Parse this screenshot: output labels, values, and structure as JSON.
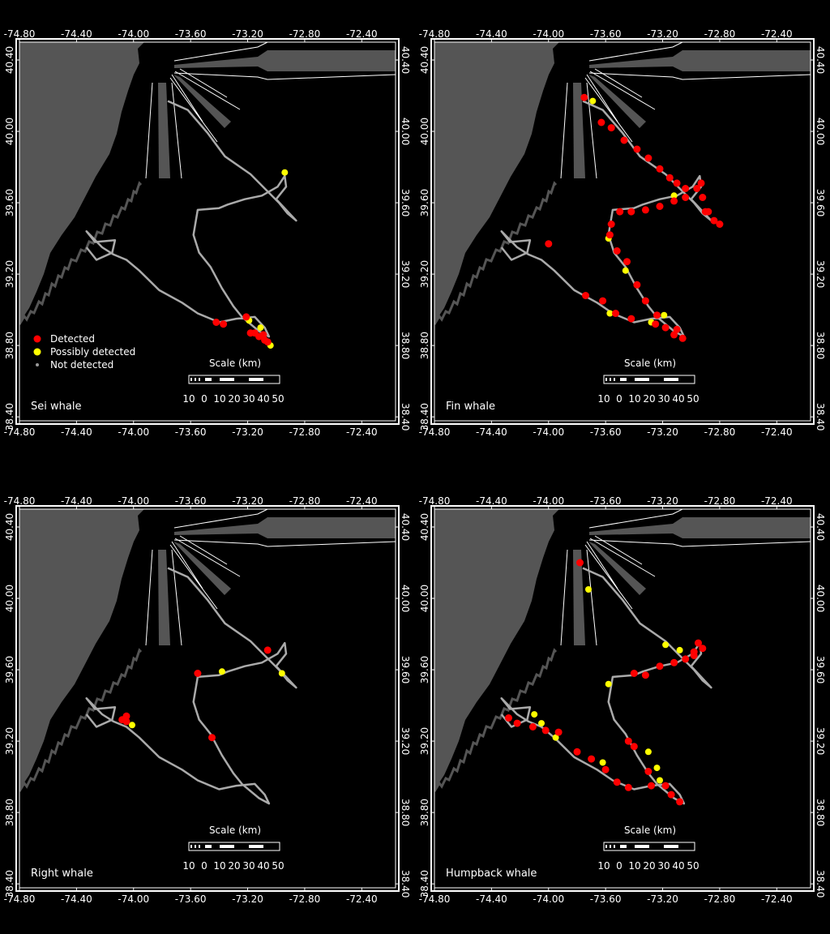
{
  "lon_ticks": [
    "-74.80",
    "-74.40",
    "-74.00",
    "-73.60",
    "-73.20",
    "-72.80",
    "-72.40"
  ],
  "lat_ticks": [
    "40.40",
    "40.00",
    "39.60",
    "39.20",
    "38.80",
    "38.40"
  ],
  "legend": [
    {
      "label": "Detected",
      "color": "#ff0000"
    },
    {
      "label": "Possibly detected",
      "color": "#ffff00"
    },
    {
      "label": "Not detected",
      "color": "#999999"
    }
  ],
  "scale": {
    "title": "Scale (km)",
    "labels": [
      "10",
      "0",
      "10",
      "20",
      "30",
      "40",
      "50"
    ]
  },
  "colors": {
    "land": "#555555",
    "track": "#aaaaaa",
    "detected": "#ff0000",
    "possible": "#ffff00",
    "frame": "#ffffff",
    "lanes": "#555555"
  },
  "track": [
    [
      -73.76,
      40.17
    ],
    [
      -73.62,
      40.12
    ],
    [
      -73.48,
      39.99
    ],
    [
      -73.36,
      39.86
    ],
    [
      -73.18,
      39.76
    ],
    [
      -73.08,
      39.68
    ],
    [
      -72.98,
      39.6
    ],
    [
      -72.92,
      39.54
    ],
    [
      -72.86,
      39.5
    ],
    [
      -73.0,
      39.62
    ],
    [
      -72.93,
      39.69
    ],
    [
      -72.94,
      39.75
    ],
    [
      -72.99,
      39.69
    ],
    [
      -73.1,
      39.64
    ],
    [
      -73.22,
      39.62
    ],
    [
      -73.34,
      39.59
    ],
    [
      -73.4,
      39.57
    ],
    [
      -73.55,
      39.56
    ],
    [
      -73.58,
      39.42
    ],
    [
      -73.54,
      39.32
    ],
    [
      -73.46,
      39.24
    ],
    [
      -73.38,
      39.12
    ],
    [
      -73.3,
      39.02
    ],
    [
      -73.24,
      38.96
    ],
    [
      -73.12,
      38.88
    ],
    [
      -73.05,
      38.85
    ],
    [
      -73.08,
      38.9
    ],
    [
      -73.15,
      38.96
    ],
    [
      -73.28,
      38.95
    ],
    [
      -73.4,
      38.93
    ],
    [
      -73.55,
      38.98
    ],
    [
      -73.66,
      39.04
    ],
    [
      -73.82,
      39.11
    ],
    [
      -73.96,
      39.22
    ],
    [
      -74.05,
      39.28
    ],
    [
      -74.14,
      39.31
    ],
    [
      -74.22,
      39.35
    ],
    [
      -74.33,
      39.44
    ],
    [
      -74.27,
      39.38
    ],
    [
      -74.13,
      39.39
    ],
    [
      -74.15,
      39.32
    ],
    [
      -74.26,
      39.28
    ],
    [
      -74.33,
      39.35
    ]
  ],
  "panels": [
    {
      "title": "Sei whale",
      "show_legend": true,
      "detected": [
        [
          -73.42,
          38.93
        ],
        [
          -73.37,
          38.92
        ],
        [
          -73.21,
          38.96
        ],
        [
          -73.18,
          38.87
        ],
        [
          -73.12,
          38.85
        ],
        [
          -73.09,
          38.86
        ],
        [
          -73.06,
          38.82
        ],
        [
          -73.08,
          38.83
        ],
        [
          -73.15,
          38.87
        ]
      ],
      "possible": [
        [
          -72.94,
          39.77
        ],
        [
          -73.19,
          38.94
        ],
        [
          -73.11,
          38.9
        ],
        [
          -73.04,
          38.8
        ]
      ]
    },
    {
      "title": "Fin whale",
      "show_legend": false,
      "detected": [
        [
          -73.75,
          40.19
        ],
        [
          -73.63,
          40.05
        ],
        [
          -73.56,
          40.02
        ],
        [
          -73.47,
          39.95
        ],
        [
          -73.38,
          39.9
        ],
        [
          -73.3,
          39.85
        ],
        [
          -73.22,
          39.79
        ],
        [
          -73.15,
          39.74
        ],
        [
          -73.1,
          39.71
        ],
        [
          -73.04,
          39.68
        ],
        [
          -72.96,
          39.68
        ],
        [
          -72.93,
          39.71
        ],
        [
          -72.92,
          39.63
        ],
        [
          -72.88,
          39.55
        ],
        [
          -72.84,
          39.5
        ],
        [
          -72.8,
          39.48
        ],
        [
          -72.9,
          39.55
        ],
        [
          -73.04,
          39.63
        ],
        [
          -73.12,
          39.61
        ],
        [
          -73.22,
          39.58
        ],
        [
          -73.32,
          39.56
        ],
        [
          -73.42,
          39.55
        ],
        [
          -73.5,
          39.55
        ],
        [
          -73.56,
          39.48
        ],
        [
          -73.57,
          39.42
        ],
        [
          -73.52,
          39.33
        ],
        [
          -73.45,
          39.27
        ],
        [
          -73.38,
          39.14
        ],
        [
          -73.32,
          39.05
        ],
        [
          -73.24,
          38.97
        ],
        [
          -73.18,
          38.9
        ],
        [
          -73.12,
          38.86
        ],
        [
          -73.06,
          38.84
        ],
        [
          -73.1,
          38.89
        ],
        [
          -73.25,
          38.92
        ],
        [
          -73.42,
          38.95
        ],
        [
          -73.53,
          38.98
        ],
        [
          -73.62,
          39.05
        ],
        [
          -73.74,
          39.08
        ],
        [
          -74.0,
          39.37
        ]
      ],
      "possible": [
        [
          -73.69,
          40.17
        ],
        [
          -73.12,
          39.64
        ],
        [
          -73.58,
          39.4
        ],
        [
          -73.46,
          39.22
        ],
        [
          -73.57,
          38.98
        ],
        [
          -73.19,
          38.97
        ],
        [
          -73.28,
          38.93
        ]
      ]
    },
    {
      "title": "Right whale",
      "show_legend": false,
      "detected": [
        [
          -73.06,
          39.71
        ],
        [
          -73.55,
          39.58
        ],
        [
          -74.08,
          39.32
        ],
        [
          -74.05,
          39.31
        ],
        [
          -74.05,
          39.34
        ],
        [
          -73.45,
          39.22
        ]
      ],
      "possible": [
        [
          -73.38,
          39.59
        ],
        [
          -72.96,
          39.58
        ],
        [
          -74.01,
          39.29
        ]
      ]
    },
    {
      "title": "Humpback whale",
      "show_legend": false,
      "detected": [
        [
          -73.78,
          40.2
        ],
        [
          -73.4,
          39.58
        ],
        [
          -73.32,
          39.57
        ],
        [
          -73.22,
          39.62
        ],
        [
          -73.12,
          39.64
        ],
        [
          -73.04,
          39.66
        ],
        [
          -72.98,
          39.7
        ],
        [
          -72.95,
          39.75
        ],
        [
          -72.92,
          39.72
        ],
        [
          -72.98,
          39.68
        ],
        [
          -74.28,
          39.33
        ],
        [
          -74.22,
          39.3
        ],
        [
          -74.11,
          39.28
        ],
        [
          -74.02,
          39.26
        ],
        [
          -73.93,
          39.25
        ],
        [
          -73.8,
          39.14
        ],
        [
          -73.7,
          39.1
        ],
        [
          -73.6,
          39.04
        ],
        [
          -73.52,
          38.97
        ],
        [
          -73.44,
          38.94
        ],
        [
          -73.28,
          38.95
        ],
        [
          -73.14,
          38.9
        ],
        [
          -73.08,
          38.86
        ],
        [
          -73.44,
          39.2
        ],
        [
          -73.4,
          39.17
        ],
        [
          -73.3,
          39.03
        ],
        [
          -73.18,
          38.95
        ]
      ],
      "possible": [
        [
          -73.72,
          40.05
        ],
        [
          -73.18,
          39.74
        ],
        [
          -73.08,
          39.71
        ],
        [
          -73.58,
          39.52
        ],
        [
          -74.1,
          39.35
        ],
        [
          -74.05,
          39.3
        ],
        [
          -73.95,
          39.22
        ],
        [
          -73.3,
          39.14
        ],
        [
          -73.24,
          39.05
        ],
        [
          -73.22,
          38.98
        ],
        [
          -73.62,
          39.08
        ]
      ]
    }
  ]
}
